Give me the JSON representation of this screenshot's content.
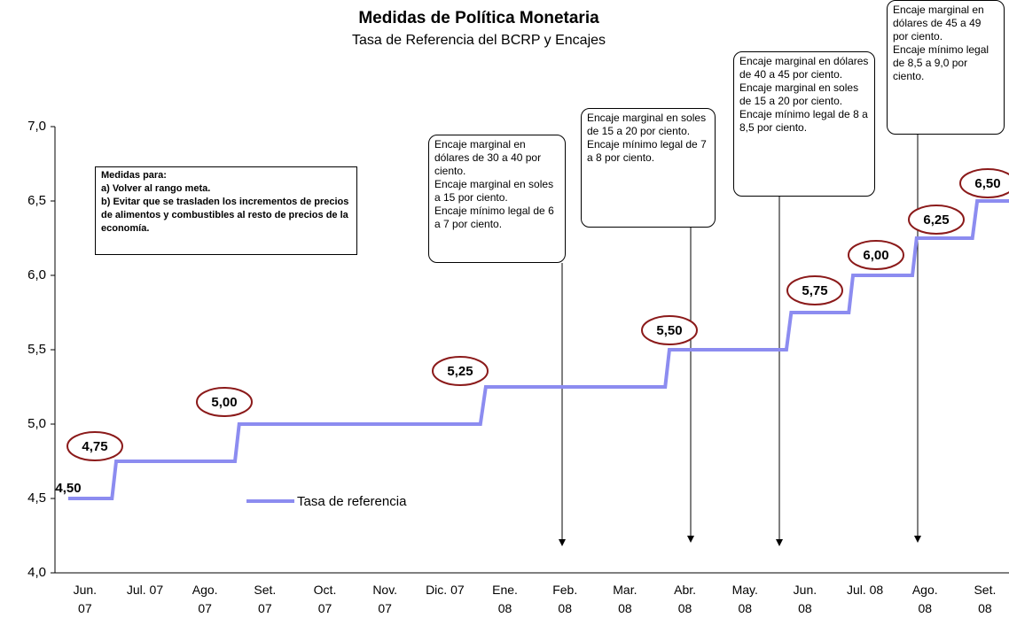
{
  "chart_data": {
    "type": "line",
    "title": "Medidas de Política Monetaria",
    "subtitle": "Tasa de Referencia del BCRP y Encajes",
    "categories": [
      "Jun. 07",
      "Jul. 07",
      "Ago. 07",
      "Set. 07",
      "Oct. 07",
      "Nov. 07",
      "Dic. 07",
      "Ene. 08",
      "Feb. 08",
      "Mar. 08",
      "Abr. 08",
      "May. 08",
      "Jun. 08",
      "Jul. 08",
      "Ago. 08",
      "Set. 08"
    ],
    "xlim": [
      -0.5,
      15.4
    ],
    "ylim": [
      4.0,
      7.0
    ],
    "yticks": [
      {
        "value": 4.0,
        "label": "4,0"
      },
      {
        "value": 4.5,
        "label": "4,5"
      },
      {
        "value": 5.0,
        "label": "5,0"
      },
      {
        "value": 5.5,
        "label": "5,5"
      },
      {
        "value": 6.0,
        "label": "6,0"
      },
      {
        "value": 6.5,
        "label": "6,5"
      },
      {
        "value": 7.0,
        "label": "7,0"
      }
    ],
    "series": [
      {
        "name": "Tasa de referencia",
        "color": "#8c8cf0",
        "x": [
          -0.28,
          0.45,
          0.52,
          2.5,
          2.57,
          6.59,
          6.68,
          9.67,
          9.74,
          11.69,
          11.77,
          12.73,
          12.8,
          13.79,
          13.86,
          14.79,
          14.87,
          15.4
        ],
        "values": [
          4.5,
          4.5,
          4.75,
          4.75,
          5.0,
          5.0,
          5.25,
          5.25,
          5.5,
          5.5,
          5.75,
          5.75,
          6.0,
          6.0,
          6.25,
          6.25,
          6.5,
          6.5
        ]
      }
    ],
    "step_labels": [
      {
        "value": 4.5,
        "label": "4,50"
      },
      {
        "value": 4.75,
        "label": "4,75"
      },
      {
        "value": 5.0,
        "label": "5,00"
      },
      {
        "value": 5.25,
        "label": "5,25"
      },
      {
        "value": 5.5,
        "label": "5,50"
      },
      {
        "value": 5.75,
        "label": "5,75"
      },
      {
        "value": 6.0,
        "label": "6,00"
      },
      {
        "value": 6.25,
        "label": "6,25"
      },
      {
        "value": 6.5,
        "label": "6,50"
      }
    ],
    "note": [
      "Medidas para:",
      "a) Volver al rango meta.",
      "b) Evitar que se trasladen los incrementos de precios de alimentos y combustibles al resto de precios de la economía."
    ],
    "annotations": [
      [
        "Encaje marginal en dólares de 30 a 40 por ciento.",
        "Encaje marginal en soles a 15 por ciento.",
        "Encaje mínimo legal de 6 a 7 por ciento."
      ],
      [
        "Encaje marginal en soles de 15 a 20 por ciento.",
        "Encaje mínimo legal de 7 a 8 por ciento."
      ],
      [
        "Encaje marginal en dólares de 40 a 45 por ciento.",
        "Encaje marginal en soles de 15 a 20 por ciento.",
        "Encaje mínimo legal de 8 a 8,5 por ciento."
      ],
      [
        "Encaje marginal en dólares de 45 a 49 por ciento.",
        "Encaje mínimo legal de 8,5 a 9,0 por ciento."
      ]
    ]
  }
}
